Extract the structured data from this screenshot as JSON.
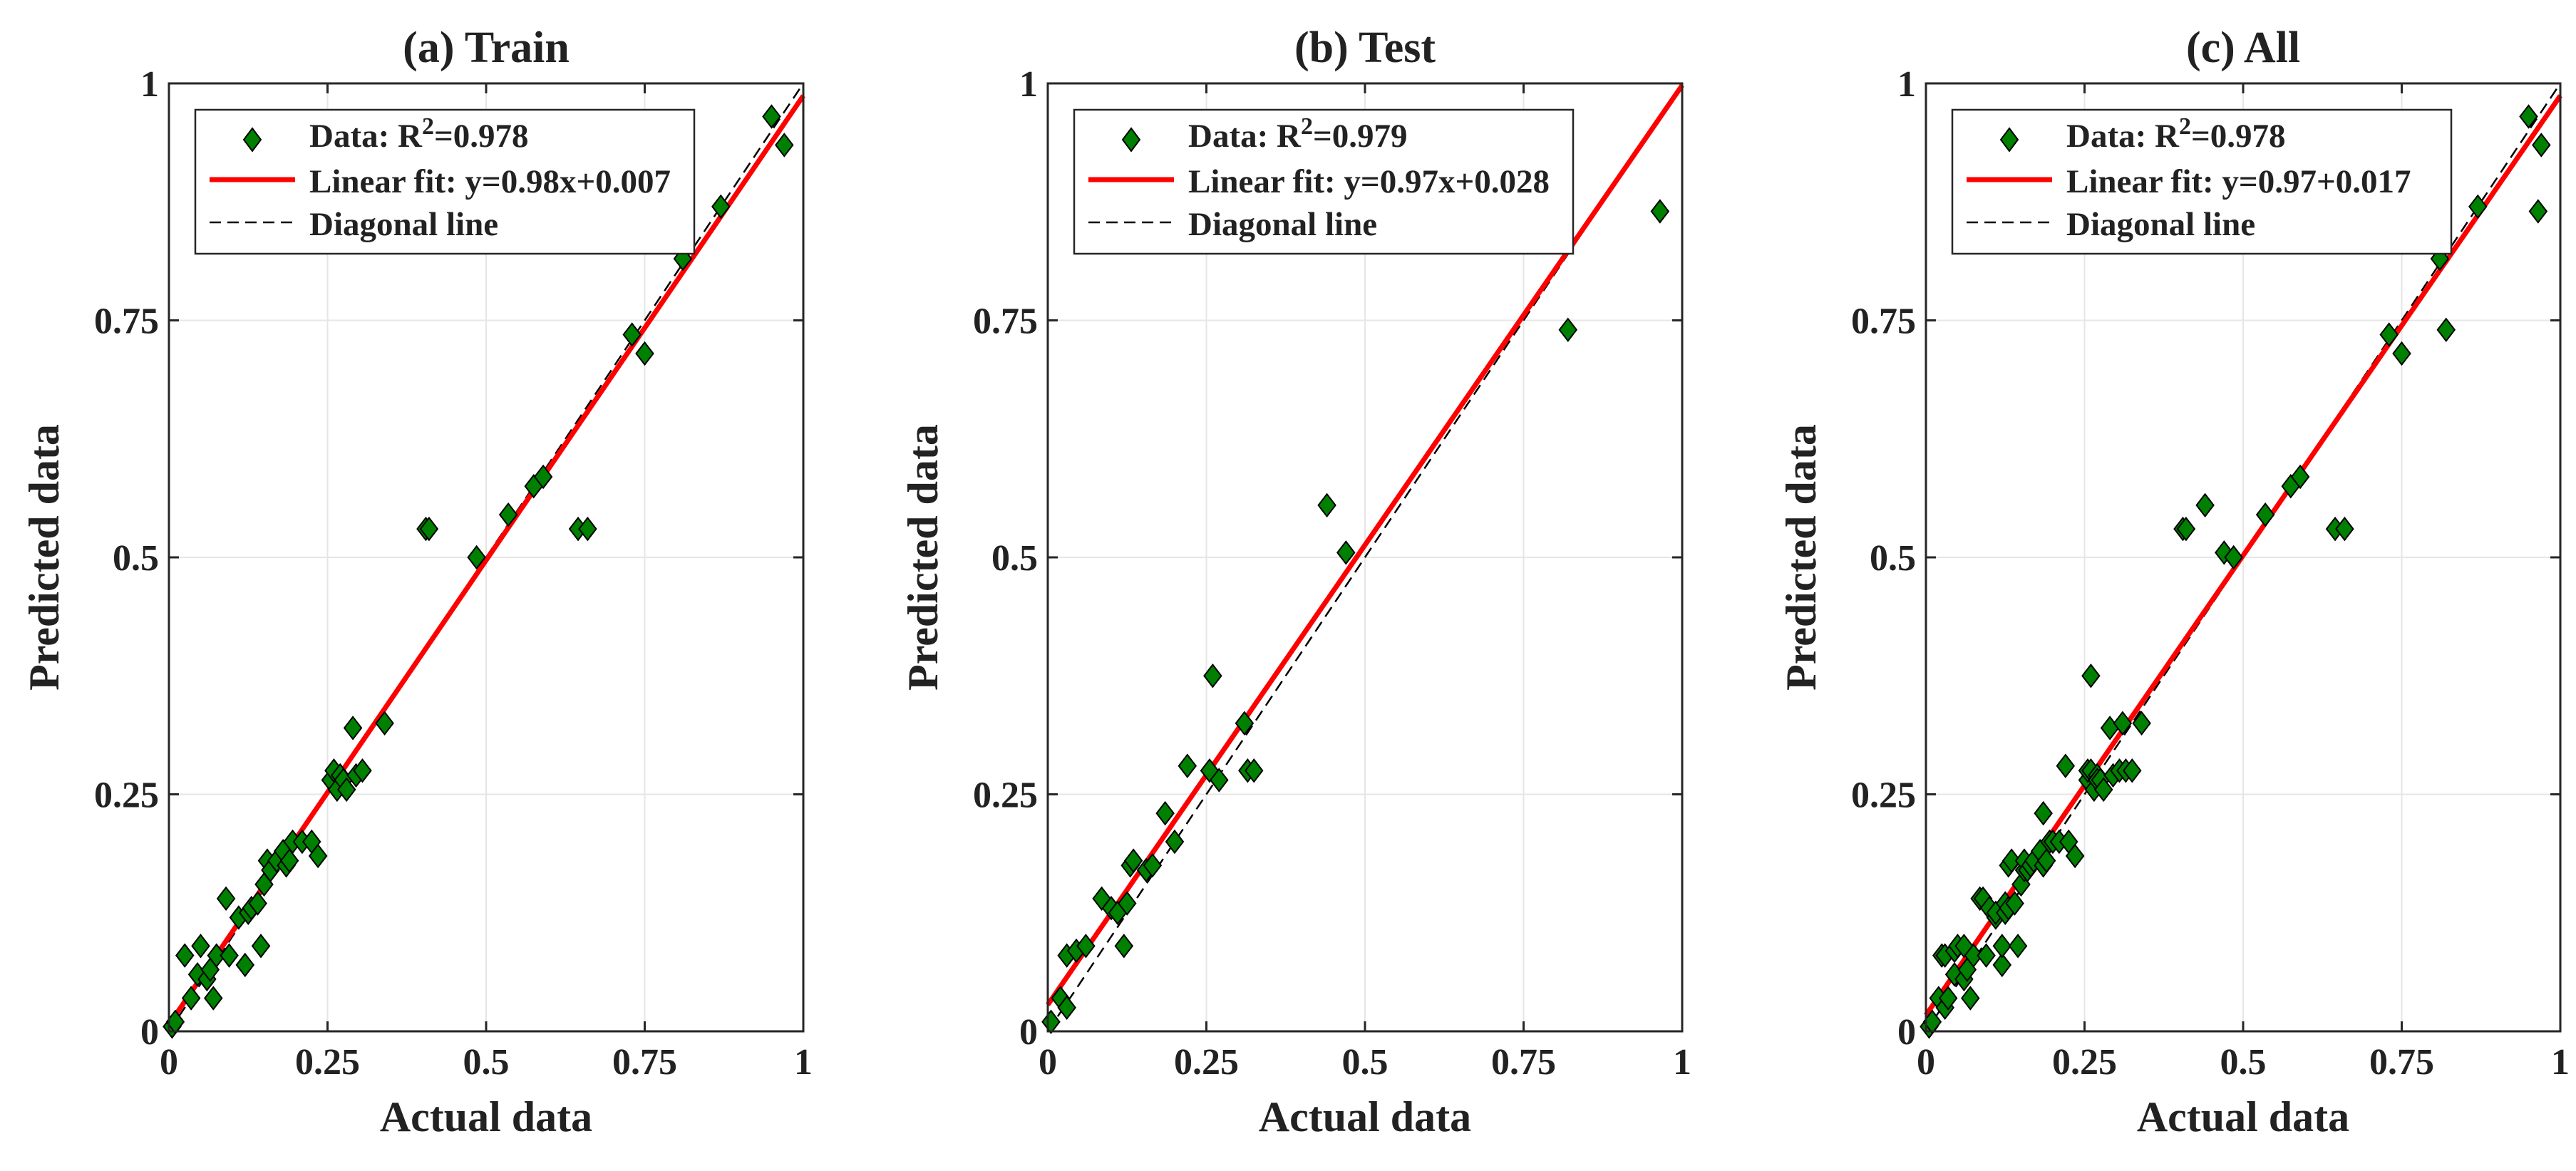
{
  "chart_data": [
    {
      "type": "scatter",
      "title": "(a) Train",
      "xlabel": "Actual data",
      "ylabel": "Predicted data",
      "xlim": [
        0,
        1
      ],
      "ylim": [
        0,
        1
      ],
      "xticks": [
        "0",
        "0.25",
        "0.5",
        "0.75",
        "1"
      ],
      "yticks": [
        "0",
        "0.25",
        "0.5",
        "0.75",
        "1"
      ],
      "grid": true,
      "legend": {
        "position": "top-left",
        "entries": [
          {
            "prefix": "Data: R",
            "sup": "2",
            "suffix": "=0.978"
          },
          {
            "prefix": "Linear fit: y=0.98x+0.007",
            "sup": "",
            "suffix": ""
          },
          {
            "prefix": "Diagonal line",
            "sup": "",
            "suffix": ""
          }
        ]
      },
      "fit": {
        "slope": 0.98,
        "intercept": 0.007,
        "color": "#ff0000"
      },
      "diagonal": {
        "color": "#000000"
      },
      "marker_color": "#008000",
      "points": [
        [
          0.005,
          0.005
        ],
        [
          0.01,
          0.01
        ],
        [
          0.025,
          0.08
        ],
        [
          0.035,
          0.035
        ],
        [
          0.045,
          0.06
        ],
        [
          0.05,
          0.09
        ],
        [
          0.06,
          0.055
        ],
        [
          0.065,
          0.065
        ],
        [
          0.07,
          0.035
        ],
        [
          0.075,
          0.08
        ],
        [
          0.09,
          0.14
        ],
        [
          0.095,
          0.08
        ],
        [
          0.11,
          0.12
        ],
        [
          0.12,
          0.07
        ],
        [
          0.125,
          0.125
        ],
        [
          0.13,
          0.13
        ],
        [
          0.14,
          0.135
        ],
        [
          0.145,
          0.09
        ],
        [
          0.15,
          0.155
        ],
        [
          0.155,
          0.18
        ],
        [
          0.16,
          0.17
        ],
        [
          0.17,
          0.18
        ],
        [
          0.18,
          0.19
        ],
        [
          0.185,
          0.175
        ],
        [
          0.19,
          0.18
        ],
        [
          0.195,
          0.2
        ],
        [
          0.21,
          0.2
        ],
        [
          0.225,
          0.2
        ],
        [
          0.235,
          0.185
        ],
        [
          0.255,
          0.265
        ],
        [
          0.26,
          0.275
        ],
        [
          0.265,
          0.255
        ],
        [
          0.27,
          0.27
        ],
        [
          0.275,
          0.265
        ],
        [
          0.28,
          0.255
        ],
        [
          0.29,
          0.32
        ],
        [
          0.295,
          0.27
        ],
        [
          0.305,
          0.275
        ],
        [
          0.34,
          0.325
        ],
        [
          0.405,
          0.53
        ],
        [
          0.41,
          0.53
        ],
        [
          0.485,
          0.5
        ],
        [
          0.535,
          0.545
        ],
        [
          0.575,
          0.575
        ],
        [
          0.59,
          0.585
        ],
        [
          0.645,
          0.53
        ],
        [
          0.66,
          0.53
        ],
        [
          0.73,
          0.735
        ],
        [
          0.75,
          0.715
        ],
        [
          0.81,
          0.815
        ],
        [
          0.87,
          0.87
        ],
        [
          0.95,
          0.965
        ],
        [
          0.97,
          0.935
        ]
      ]
    },
    {
      "type": "scatter",
      "title": "(b) Test",
      "xlabel": "Actual data",
      "ylabel": "Predicted data",
      "xlim": [
        0,
        1
      ],
      "ylim": [
        0,
        1
      ],
      "xticks": [
        "0",
        "0.25",
        "0.5",
        "0.75",
        "1"
      ],
      "yticks": [
        "0",
        "0.25",
        "0.5",
        "0.75",
        "1"
      ],
      "grid": true,
      "legend": {
        "position": "top-left",
        "entries": [
          {
            "prefix": "Data: R",
            "sup": "2",
            "suffix": "=0.979"
          },
          {
            "prefix": "Linear fit: y=0.97x+0.028",
            "sup": "",
            "suffix": ""
          },
          {
            "prefix": "Diagonal line",
            "sup": "",
            "suffix": ""
          }
        ]
      },
      "fit": {
        "slope": 0.97,
        "intercept": 0.028,
        "color": "#ff0000"
      },
      "diagonal": {
        "color": "#000000"
      },
      "marker_color": "#008000",
      "points": [
        [
          0.005,
          0.01
        ],
        [
          0.02,
          0.035
        ],
        [
          0.03,
          0.025
        ],
        [
          0.03,
          0.08
        ],
        [
          0.045,
          0.085
        ],
        [
          0.06,
          0.09
        ],
        [
          0.085,
          0.14
        ],
        [
          0.1,
          0.13
        ],
        [
          0.11,
          0.125
        ],
        [
          0.12,
          0.09
        ],
        [
          0.125,
          0.135
        ],
        [
          0.13,
          0.175
        ],
        [
          0.135,
          0.18
        ],
        [
          0.155,
          0.17
        ],
        [
          0.165,
          0.175
        ],
        [
          0.185,
          0.23
        ],
        [
          0.2,
          0.2
        ],
        [
          0.22,
          0.28
        ],
        [
          0.255,
          0.275
        ],
        [
          0.26,
          0.375
        ],
        [
          0.27,
          0.265
        ],
        [
          0.31,
          0.325
        ],
        [
          0.315,
          0.275
        ],
        [
          0.325,
          0.275
        ],
        [
          0.44,
          0.555
        ],
        [
          0.47,
          0.505
        ],
        [
          0.82,
          0.74
        ],
        [
          0.965,
          0.865
        ]
      ]
    },
    {
      "type": "scatter",
      "title": "(c) All",
      "xlabel": "Actual data",
      "ylabel": "Predicted data",
      "xlim": [
        0,
        1
      ],
      "ylim": [
        0,
        1
      ],
      "xticks": [
        "0",
        "0.25",
        "0.5",
        "0.75",
        "1"
      ],
      "yticks": [
        "0",
        "0.25",
        "0.5",
        "0.75",
        "1"
      ],
      "grid": true,
      "legend": {
        "position": "top-left",
        "entries": [
          {
            "prefix": "Data: R",
            "sup": "2",
            "suffix": "=0.978"
          },
          {
            "prefix": "Linear fit: y=0.97+0.017",
            "sup": "",
            "suffix": ""
          },
          {
            "prefix": "Diagonal line",
            "sup": "",
            "suffix": ""
          }
        ]
      },
      "fit": {
        "slope": 0.97,
        "intercept": 0.017,
        "color": "#ff0000"
      },
      "diagonal": {
        "color": "#000000"
      },
      "marker_color": "#008000",
      "points": [
        [
          0.005,
          0.005
        ],
        [
          0.01,
          0.01
        ],
        [
          0.02,
          0.035
        ],
        [
          0.025,
          0.08
        ],
        [
          0.03,
          0.025
        ],
        [
          0.03,
          0.08
        ],
        [
          0.035,
          0.035
        ],
        [
          0.045,
          0.06
        ],
        [
          0.045,
          0.085
        ],
        [
          0.05,
          0.09
        ],
        [
          0.06,
          0.055
        ],
        [
          0.06,
          0.09
        ],
        [
          0.065,
          0.065
        ],
        [
          0.07,
          0.035
        ],
        [
          0.075,
          0.08
        ],
        [
          0.085,
          0.14
        ],
        [
          0.09,
          0.14
        ],
        [
          0.095,
          0.08
        ],
        [
          0.1,
          0.13
        ],
        [
          0.11,
          0.12
        ],
        [
          0.11,
          0.125
        ],
        [
          0.12,
          0.07
        ],
        [
          0.12,
          0.09
        ],
        [
          0.125,
          0.125
        ],
        [
          0.125,
          0.135
        ],
        [
          0.13,
          0.13
        ],
        [
          0.13,
          0.175
        ],
        [
          0.135,
          0.18
        ],
        [
          0.14,
          0.135
        ],
        [
          0.145,
          0.09
        ],
        [
          0.15,
          0.155
        ],
        [
          0.155,
          0.17
        ],
        [
          0.155,
          0.18
        ],
        [
          0.16,
          0.17
        ],
        [
          0.165,
          0.175
        ],
        [
          0.17,
          0.18
        ],
        [
          0.18,
          0.19
        ],
        [
          0.185,
          0.175
        ],
        [
          0.185,
          0.23
        ],
        [
          0.19,
          0.18
        ],
        [
          0.195,
          0.2
        ],
        [
          0.2,
          0.2
        ],
        [
          0.21,
          0.2
        ],
        [
          0.22,
          0.28
        ],
        [
          0.225,
          0.2
        ],
        [
          0.235,
          0.185
        ],
        [
          0.255,
          0.265
        ],
        [
          0.255,
          0.275
        ],
        [
          0.26,
          0.275
        ],
        [
          0.26,
          0.375
        ],
        [
          0.265,
          0.255
        ],
        [
          0.27,
          0.27
        ],
        [
          0.27,
          0.265
        ],
        [
          0.275,
          0.265
        ],
        [
          0.28,
          0.255
        ],
        [
          0.29,
          0.32
        ],
        [
          0.295,
          0.27
        ],
        [
          0.305,
          0.275
        ],
        [
          0.31,
          0.325
        ],
        [
          0.315,
          0.275
        ],
        [
          0.325,
          0.275
        ],
        [
          0.34,
          0.325
        ],
        [
          0.405,
          0.53
        ],
        [
          0.41,
          0.53
        ],
        [
          0.44,
          0.555
        ],
        [
          0.47,
          0.505
        ],
        [
          0.485,
          0.5
        ],
        [
          0.535,
          0.545
        ],
        [
          0.575,
          0.575
        ],
        [
          0.59,
          0.585
        ],
        [
          0.645,
          0.53
        ],
        [
          0.66,
          0.53
        ],
        [
          0.73,
          0.735
        ],
        [
          0.75,
          0.715
        ],
        [
          0.81,
          0.815
        ],
        [
          0.82,
          0.74
        ],
        [
          0.87,
          0.87
        ],
        [
          0.95,
          0.965
        ],
        [
          0.965,
          0.865
        ],
        [
          0.97,
          0.935
        ]
      ]
    }
  ]
}
